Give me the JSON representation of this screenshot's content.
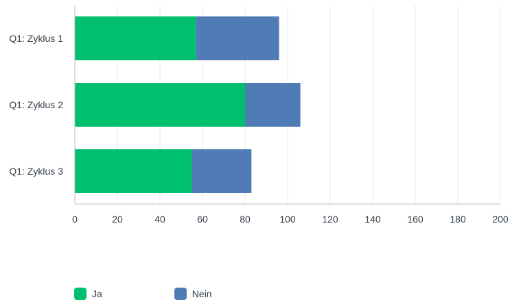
{
  "chart_data": {
    "type": "bar",
    "orientation": "horizontal",
    "stacked": true,
    "categories": [
      "Q1: Zyklus 1",
      "Q1: Zyklus 2",
      "Q1: Zyklus 3"
    ],
    "series": [
      {
        "name": "Ja",
        "color": "#00bf6f",
        "values": [
          57,
          80,
          55
        ]
      },
      {
        "name": "Nein",
        "color": "#507cb6",
        "values": [
          39,
          26,
          28
        ]
      }
    ],
    "xlim": [
      0,
      200
    ],
    "xticks": [
      0,
      20,
      40,
      60,
      80,
      100,
      120,
      140,
      160,
      180,
      200
    ],
    "grid": "vertical",
    "legend_position": "bottom-left",
    "title": "",
    "xlabel": "",
    "ylabel": ""
  }
}
